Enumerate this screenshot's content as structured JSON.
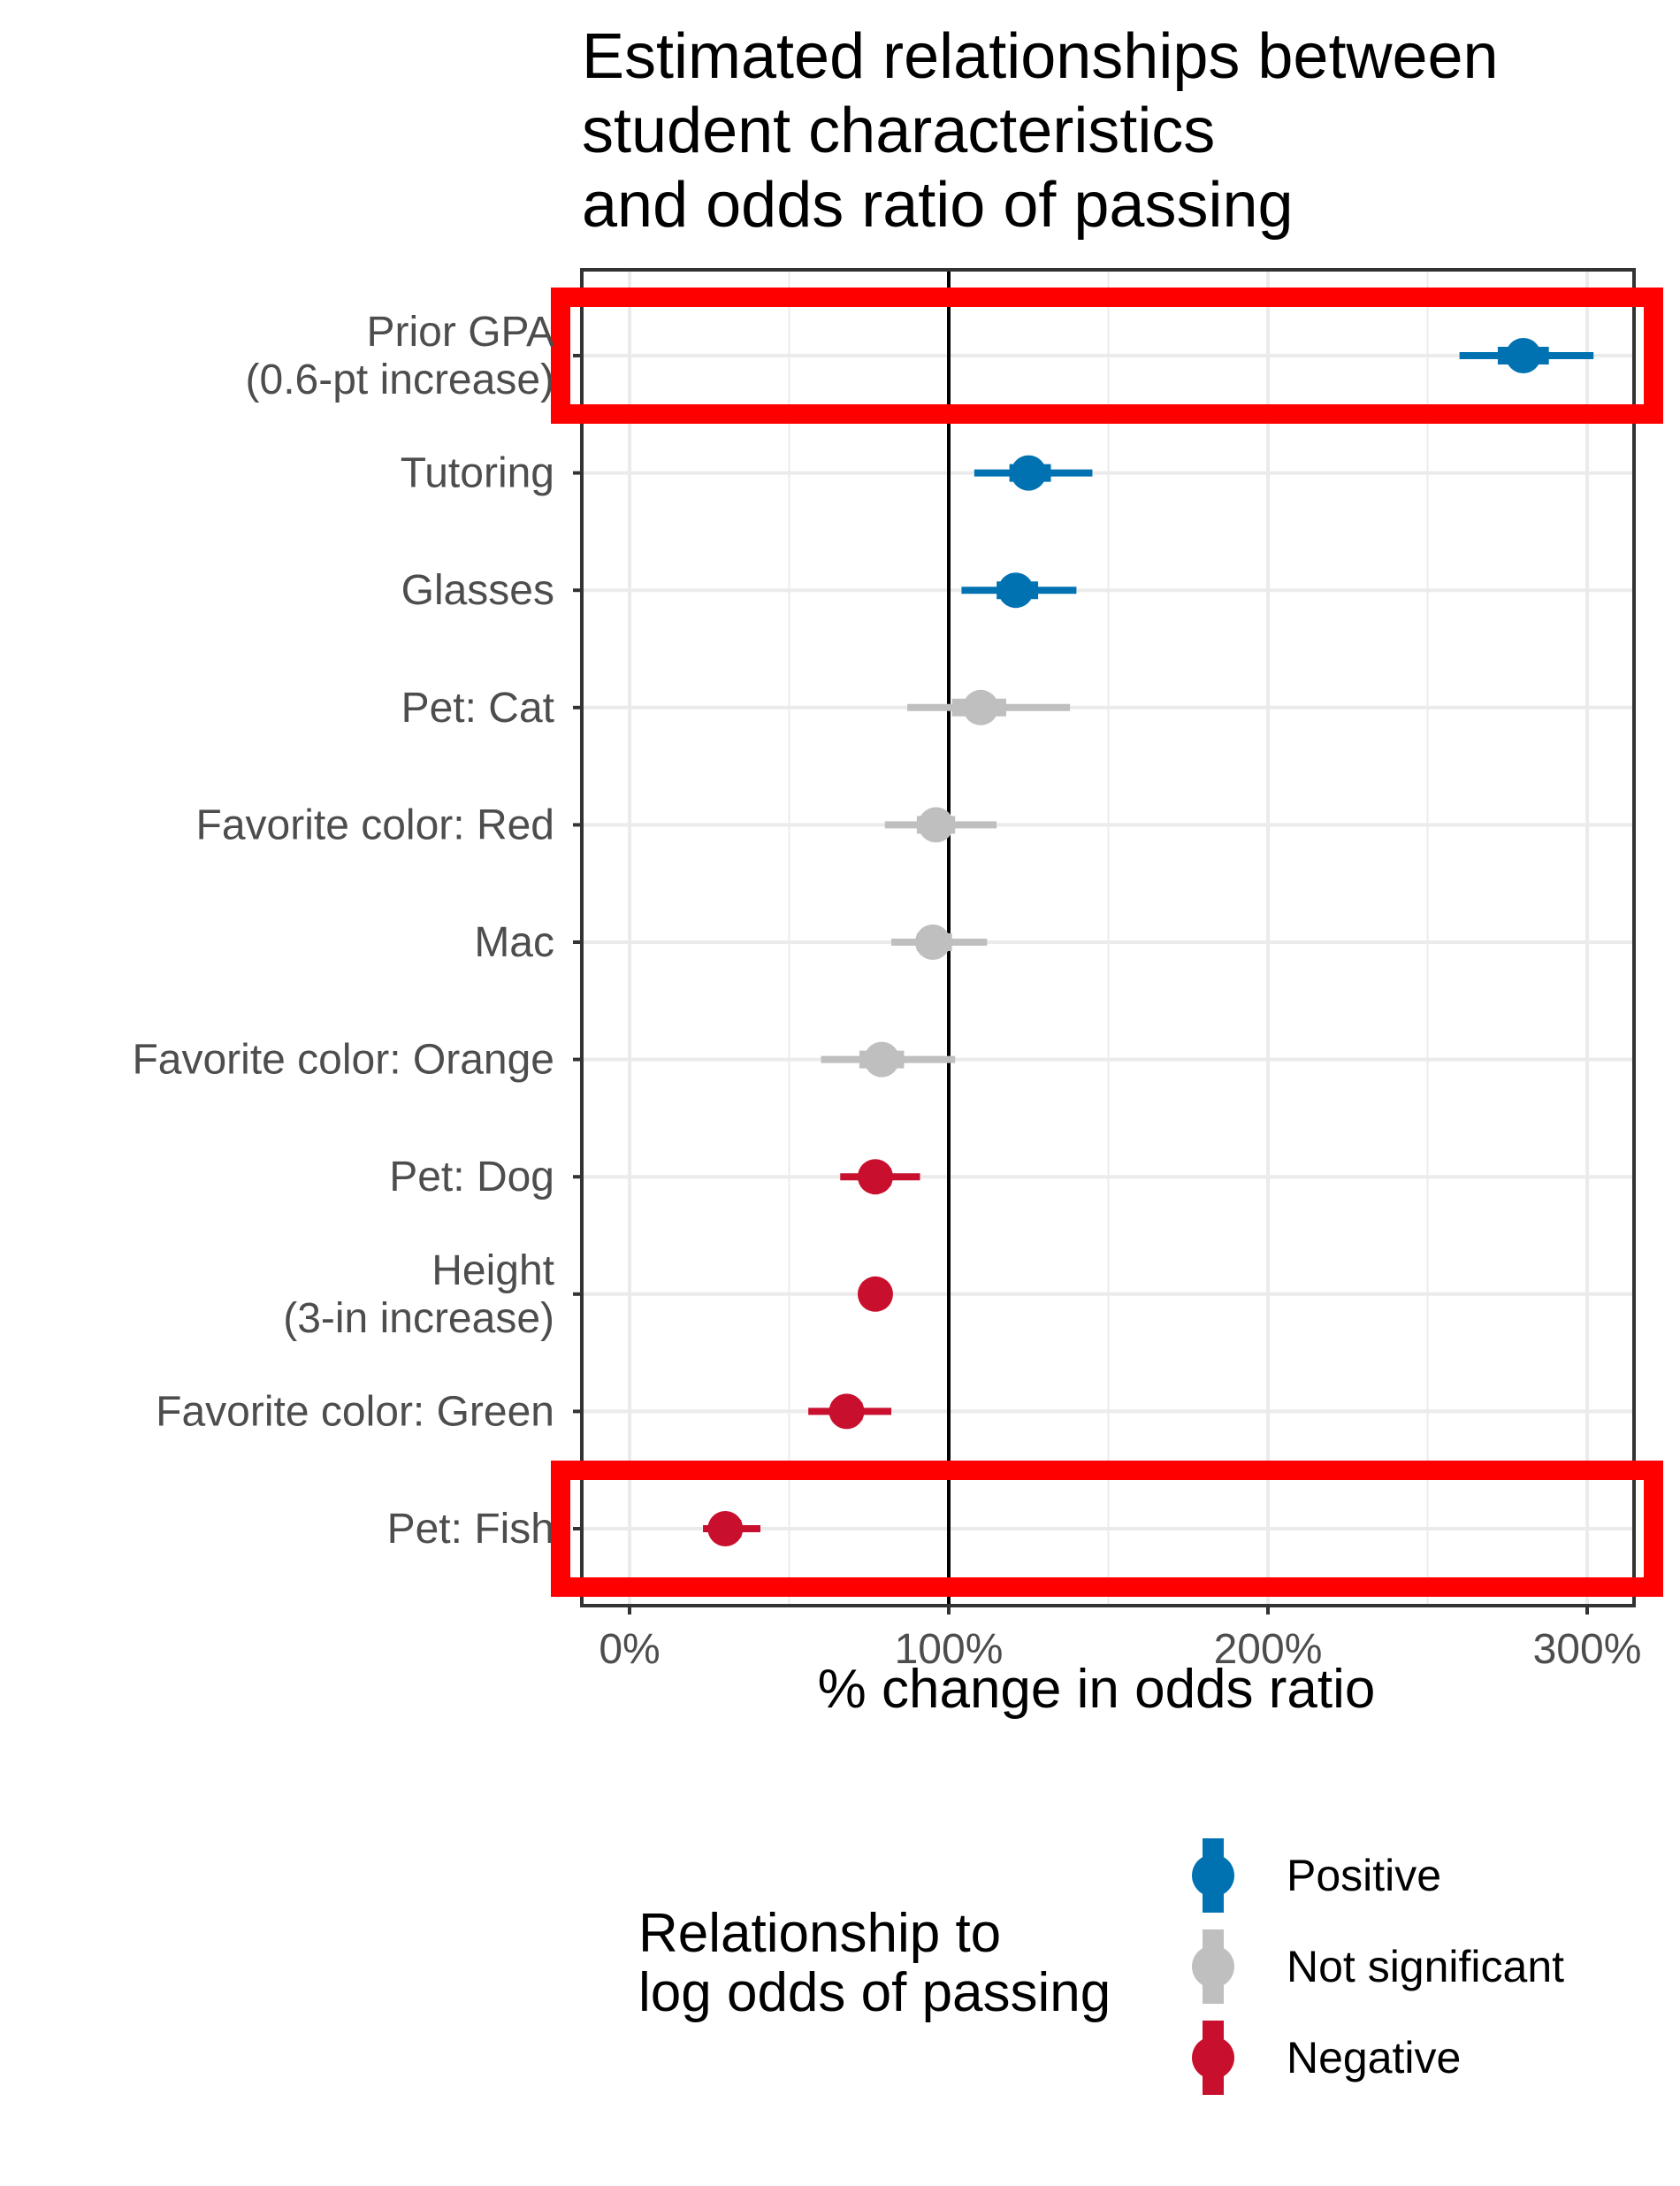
{
  "chart_data": {
    "type": "scatter",
    "title_lines": [
      "Estimated relationships between",
      "student characteristics",
      "and odds ratio of passing"
    ],
    "xlabel": "% change in odds ratio",
    "ylabel": "",
    "xlim": [
      -15,
      315
    ],
    "x_ticks": [
      0,
      100,
      200,
      300
    ],
    "x_tick_labels": [
      "0%",
      "100%",
      "200%",
      "300%"
    ],
    "reference_line_x": 100,
    "grid": true,
    "categories": [
      [
        "Prior GPA",
        "(0.6-pt increase)"
      ],
      [
        "Tutoring"
      ],
      [
        "Glasses"
      ],
      [
        "Pet: Cat"
      ],
      [
        "Favorite color: Red"
      ],
      [
        "Mac"
      ],
      [
        "Favorite color: Orange"
      ],
      [
        "Pet: Dog"
      ],
      [
        "Height",
        "(3-in increase)"
      ],
      [
        "Favorite color: Green"
      ],
      [
        "Pet: Fish"
      ]
    ],
    "points": [
      {
        "estimate": 280,
        "ci_low": 260,
        "ci_high": 302,
        "inner_low": 272,
        "inner_high": 288,
        "group": "Positive"
      },
      {
        "estimate": 125,
        "ci_low": 108,
        "ci_high": 145,
        "inner_low": 119,
        "inner_high": 132,
        "group": "Positive"
      },
      {
        "estimate": 121,
        "ci_low": 104,
        "ci_high": 140,
        "inner_low": 115,
        "inner_high": 128,
        "group": "Positive"
      },
      {
        "estimate": 110,
        "ci_low": 87,
        "ci_high": 138,
        "inner_low": 101,
        "inner_high": 118,
        "group": "Not significant"
      },
      {
        "estimate": 96,
        "ci_low": 80,
        "ci_high": 115,
        "inner_low": 90,
        "inner_high": 102,
        "group": "Not significant"
      },
      {
        "estimate": 95,
        "ci_low": 82,
        "ci_high": 112,
        "inner_low": 90,
        "inner_high": 101,
        "group": "Not significant"
      },
      {
        "estimate": 79,
        "ci_low": 60,
        "ci_high": 102,
        "inner_low": 72,
        "inner_high": 86,
        "group": "Not significant"
      },
      {
        "estimate": 77,
        "ci_low": 66,
        "ci_high": 91,
        "inner_low": 73,
        "inner_high": 82,
        "group": "Negative"
      },
      {
        "estimate": 77,
        "ci_low": 76,
        "ci_high": 79,
        "inner_low": 76.5,
        "inner_high": 78.5,
        "group": "Negative"
      },
      {
        "estimate": 68,
        "ci_low": 56,
        "ci_high": 82,
        "inner_low": 64,
        "inner_high": 73,
        "group": "Negative"
      },
      {
        "estimate": 30,
        "ci_low": 23,
        "ci_high": 41,
        "inner_low": 26,
        "inner_high": 35,
        "group": "Negative"
      }
    ],
    "highlighted_rows": [
      0,
      10
    ],
    "highlight_color": "#ff0000",
    "legend": {
      "title_lines": [
        "Relationship to",
        "log odds of passing"
      ],
      "position": "bottom",
      "entries": [
        {
          "label": "Positive",
          "color": "#0072b2"
        },
        {
          "label": "Not significant",
          "color": "#bfbfbf"
        },
        {
          "label": "Negative",
          "color": "#c8102e"
        }
      ]
    }
  }
}
